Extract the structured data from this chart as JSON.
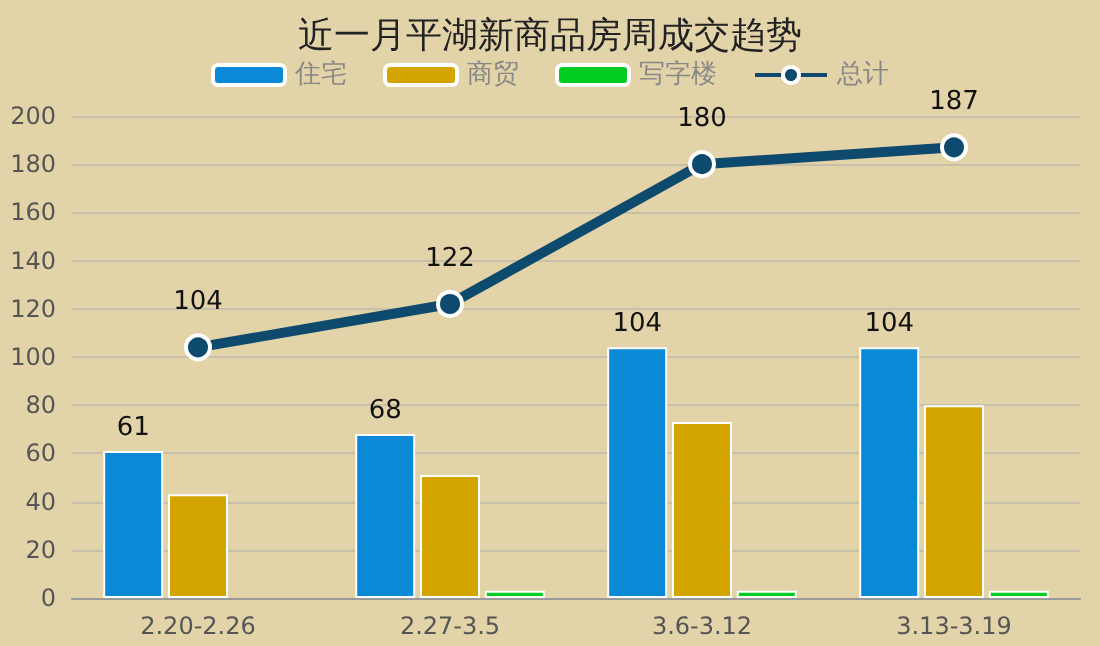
{
  "chart_data": {
    "type": "bar",
    "title": "近一月平湖新商品房周成交趋势",
    "categories": [
      "2.20-2.26",
      "2.27-3.5",
      "3.6-3.12",
      "3.13-3.19"
    ],
    "series": [
      {
        "name": "住宅",
        "color": "#0a8ad6",
        "values": [
          61,
          68,
          104,
          104
        ],
        "value_labels": [
          "61",
          "68",
          "104",
          "104"
        ]
      },
      {
        "name": "商贸",
        "color": "#d4a400",
        "values": [
          43,
          51,
          73,
          80
        ]
      },
      {
        "name": "写字楼",
        "color": "#00cc22",
        "values": [
          null,
          3,
          3,
          3
        ]
      },
      {
        "name": "总计",
        "type": "line",
        "color": "#0d4a6e",
        "marker": "circle",
        "values": [
          104,
          122,
          180,
          187
        ],
        "value_labels": [
          "104",
          "122",
          "180",
          "187"
        ]
      }
    ],
    "ylim": [
      0,
      200
    ],
    "yticks": [
      0,
      20,
      40,
      60,
      80,
      100,
      120,
      140,
      160,
      180,
      200
    ],
    "grid": "y",
    "legend": "top"
  }
}
